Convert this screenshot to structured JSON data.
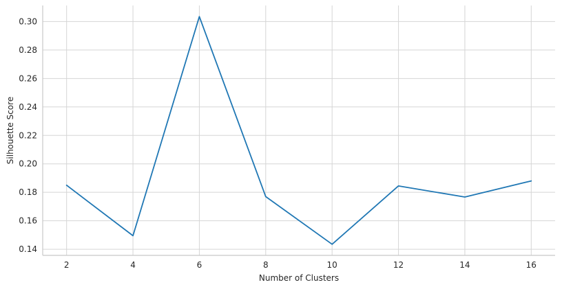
{
  "chart_data": {
    "type": "line",
    "title": "",
    "xlabel": "Number of Clusters",
    "ylabel": "Silhouette Score",
    "x": [
      2,
      4,
      6,
      8,
      10,
      12,
      14,
      16
    ],
    "series": [
      {
        "values": [
          0.185,
          0.1495,
          0.3035,
          0.177,
          0.1435,
          0.1845,
          0.1767,
          0.188
        ]
      }
    ],
    "xticks": [
      "2",
      "4",
      "6",
      "8",
      "10",
      "12",
      "14",
      "16"
    ],
    "yticks": [
      "0.14",
      "0.16",
      "0.18",
      "0.20",
      "0.22",
      "0.24",
      "0.26",
      "0.28",
      "0.30"
    ],
    "xlim": [
      1.28,
      16.72
    ],
    "ylim": [
      0.1357,
      0.3113
    ],
    "grid": true,
    "line_color": "#1f77b4",
    "grid_color": "#d5d5d5"
  }
}
